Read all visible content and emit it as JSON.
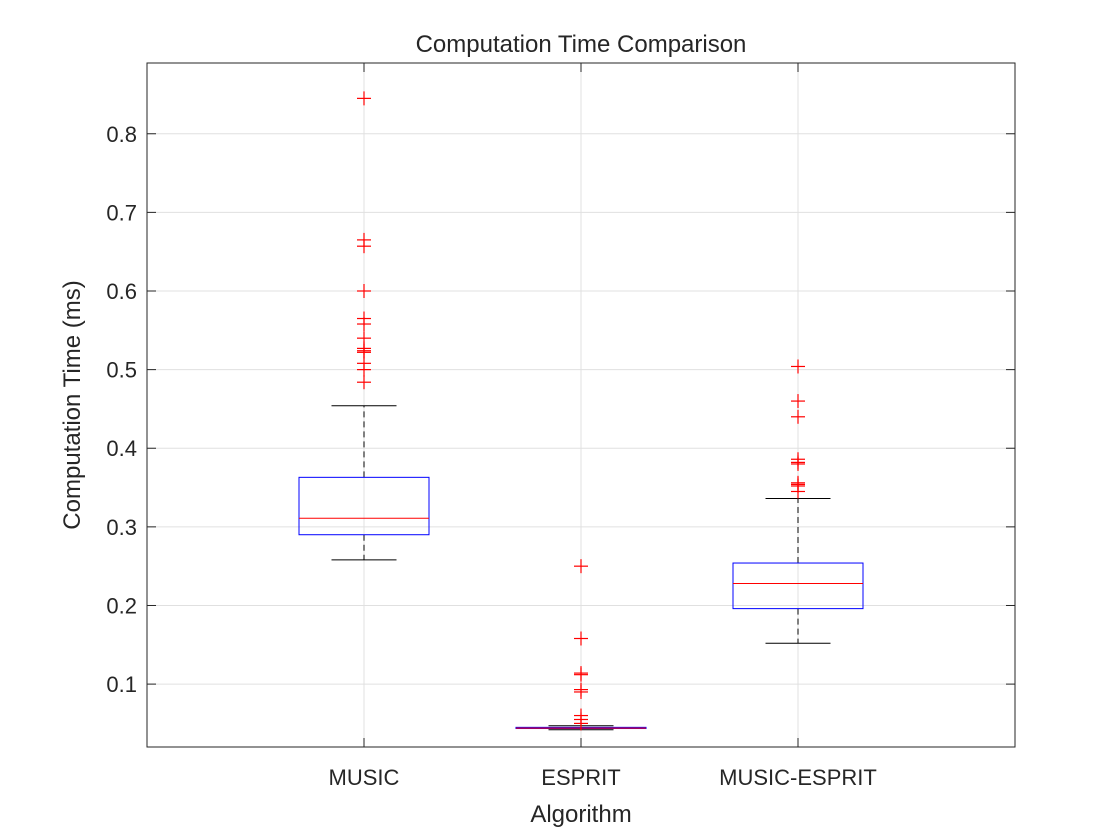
{
  "chart_data": {
    "type": "box",
    "title": "Computation Time Comparison",
    "xlabel": "Algorithm",
    "ylabel": "Computation Time (ms)",
    "ylim": [
      0.02,
      0.89
    ],
    "yticks": [
      0.1,
      0.2,
      0.3,
      0.4,
      0.5,
      0.6,
      0.7,
      0.8
    ],
    "ytick_labels": [
      "0.1",
      "0.2",
      "0.3",
      "0.4",
      "0.5",
      "0.6",
      "0.7",
      "0.8"
    ],
    "grid": true,
    "categories": [
      "MUSIC",
      "ESPRIT",
      "MUSIC-ESPRIT"
    ],
    "boxes": [
      {
        "category": "MUSIC",
        "whisker_low": 0.258,
        "q1": 0.29,
        "median": 0.311,
        "q3": 0.363,
        "whisker_high": 0.454,
        "outliers": [
          0.845,
          0.665,
          0.657,
          0.6,
          0.565,
          0.558,
          0.54,
          0.527,
          0.524,
          0.522,
          0.508,
          0.5,
          0.484
        ]
      },
      {
        "category": "ESPRIT",
        "whisker_low": 0.042,
        "q1": 0.0435,
        "median": 0.044,
        "q3": 0.045,
        "whisker_high": 0.047,
        "outliers": [
          0.25,
          0.158,
          0.114,
          0.112,
          0.093,
          0.09,
          0.06,
          0.055,
          0.05
        ]
      },
      {
        "category": "MUSIC-ESPRIT",
        "whisker_low": 0.152,
        "q1": 0.196,
        "median": 0.228,
        "q3": 0.254,
        "whisker_high": 0.336,
        "outliers": [
          0.504,
          0.46,
          0.44,
          0.386,
          0.382,
          0.38,
          0.356,
          0.354,
          0.352,
          0.345
        ]
      }
    ],
    "colors": {
      "box": "#0000ff",
      "median": "#ff0000",
      "whisker": "#000000",
      "outlier": "#ff0000",
      "grid": "#e0e0e0",
      "axis": "#262626"
    }
  }
}
